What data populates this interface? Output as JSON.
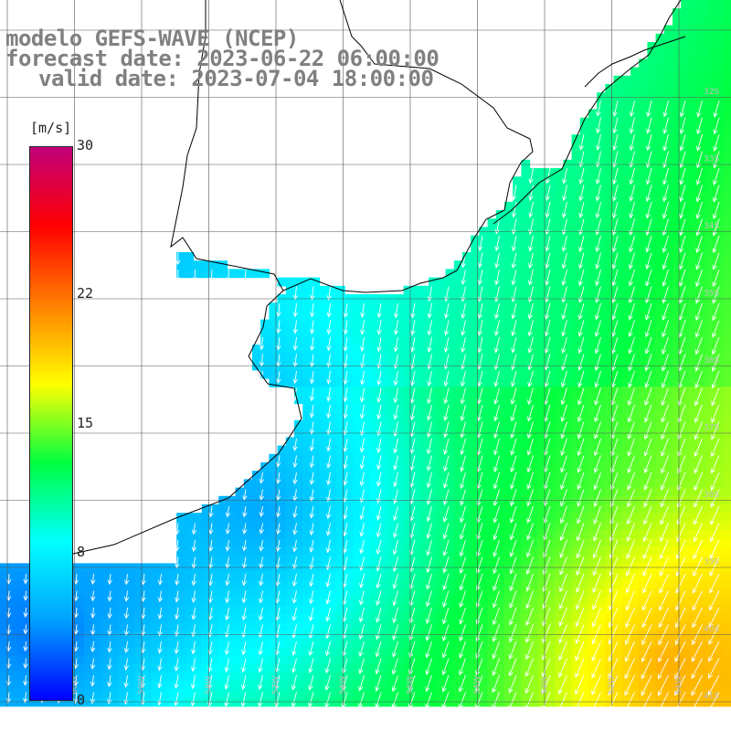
{
  "header": {
    "model": "modelo GEFS-WAVE (NCEP)",
    "forecast": "forecast date: 2023-06-22 06:00:00",
    "valid": "valid date: 2023-07-04 18:00:00"
  },
  "colorbar": {
    "units": "[m/s]",
    "ticks": [
      {
        "label": "30",
        "value": 30
      },
      {
        "label": "22",
        "value": 22
      },
      {
        "label": "15",
        "value": 15
      },
      {
        "label": "8",
        "value": 8
      },
      {
        "label": "0",
        "value": 0
      }
    ],
    "colors": [
      "#0000ff",
      "#00a0ff",
      "#00ffff",
      "#00ff40",
      "#ffff00",
      "#ff8000",
      "#ff0000",
      "#c0007a"
    ]
  },
  "map_labels": {
    "lat": [
      "32S",
      "33S",
      "34S",
      "35S",
      "36S",
      "37S",
      "38S",
      "39S",
      "40S",
      "41S"
    ],
    "lon": [
      "60W",
      "59W",
      "58W",
      "57W",
      "56W",
      "55W",
      "54W",
      "53W",
      "52W",
      "51W"
    ]
  },
  "field": {
    "land_color": "#ffffff",
    "arrow_color": "#ffffff",
    "grid_color": "#555555"
  }
}
